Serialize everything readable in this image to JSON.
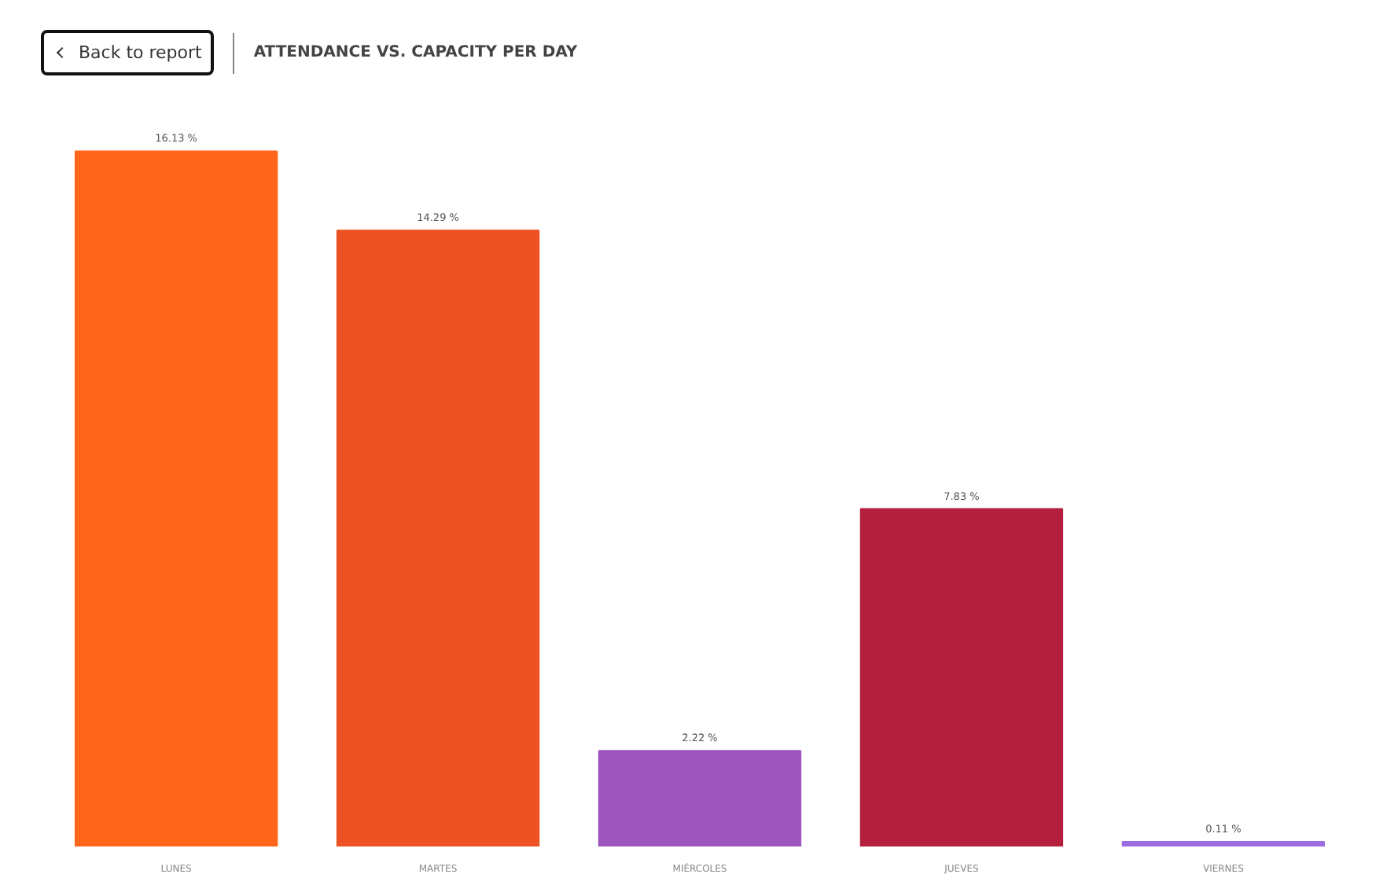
{
  "chart_data": {
    "type": "bar",
    "title": "ATTENDANCE VS. CAPACITY PER DAY",
    "annotations": [
      "Back to report"
    ],
    "categories": [
      "LUNES",
      "MARTES",
      "MIÉRCOLES",
      "JUEVES",
      "VIERNES"
    ],
    "values": [
      16.13,
      14.29,
      2.22,
      7.83,
      0.11
    ],
    "value_labels": [
      "16.13 %",
      "14.29 %",
      "2.22 %",
      "7.83 %",
      "0.11 %"
    ],
    "colors": [
      "#ff6619",
      "#ec5223",
      "#9c55bd",
      "#b31f3d",
      "#9b6de0"
    ],
    "grid": false
  }
}
